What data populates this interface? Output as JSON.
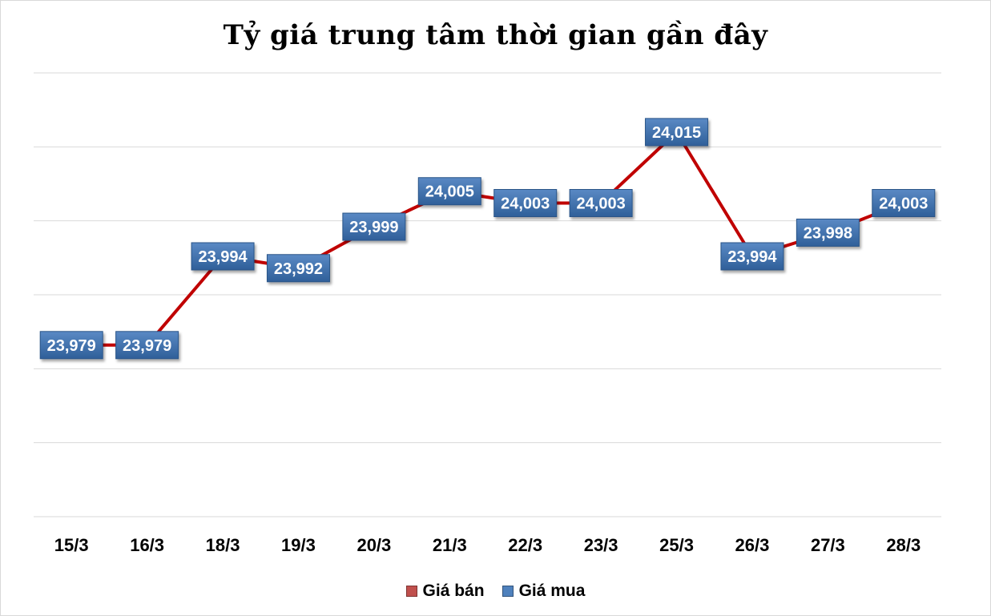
{
  "chart_data": {
    "type": "line",
    "title": "Tỷ giá trung tâm thời gian gần đây",
    "categories": [
      "15/3",
      "16/3",
      "18/3",
      "19/3",
      "20/3",
      "21/3",
      "22/3",
      "23/3",
      "25/3",
      "26/3",
      "27/3",
      "28/3"
    ],
    "series": [
      {
        "name": "Giá bán",
        "color": "#c00000",
        "values": [
          23979,
          23979,
          23994,
          23992,
          23999,
          24005,
          24003,
          24003,
          24015,
          23994,
          23998,
          24003
        ]
      }
    ],
    "data_labels": [
      "23,979",
      "23,979",
      "23,994",
      "23,992",
      "23,999",
      "24,005",
      "24,003",
      "24,003",
      "24,015",
      "23,994",
      "23,998",
      "24,003"
    ],
    "label_color": "#3f6fa8",
    "ylim": [
      23950,
      24025
    ],
    "grid": true,
    "y_tick_labels_shown": false,
    "legend_position": "bottom",
    "legend": [
      {
        "name": "Giá bán",
        "color": "#c0504d"
      },
      {
        "name": "Giá mua",
        "color": "#4f81bd"
      }
    ]
  }
}
